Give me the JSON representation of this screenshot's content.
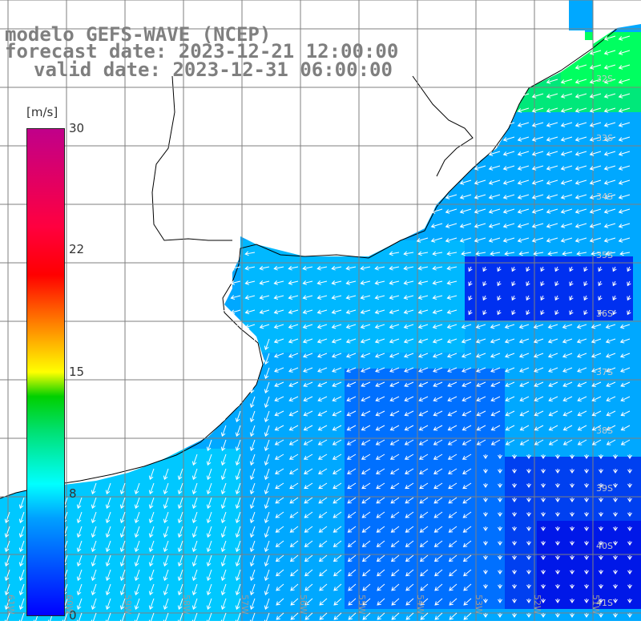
{
  "title": {
    "line1": "modelo GEFS-WAVE (NCEP)",
    "line2": "forecast date: 2023-12-21 12:00:00",
    "line3": "valid date: 2023-12-31 06:00:00"
  },
  "colorbar": {
    "unit": "[m/s]",
    "ticks": [
      "30",
      "22",
      "15",
      "8",
      "0"
    ],
    "min": 0,
    "max": 30,
    "colors": [
      "#0000ff",
      "#00a0ff",
      "#00ffff",
      "#00d000",
      "#ffff00",
      "#ff8000",
      "#ff0000",
      "#c0008a"
    ]
  },
  "map": {
    "lat_labels": [
      "32S",
      "33S",
      "34S",
      "35S",
      "36S",
      "37S",
      "38S",
      "39S",
      "40S",
      "41S"
    ],
    "lon_labels": [
      "61W",
      "60W",
      "59W",
      "58W",
      "57W",
      "56W",
      "55W",
      "54W",
      "53W",
      "52W",
      "51W"
    ],
    "land_color": "#ffffff",
    "grid_color": "#7f7f7f",
    "coast_color": "#000000",
    "arrow_color": "#ffffff"
  }
}
